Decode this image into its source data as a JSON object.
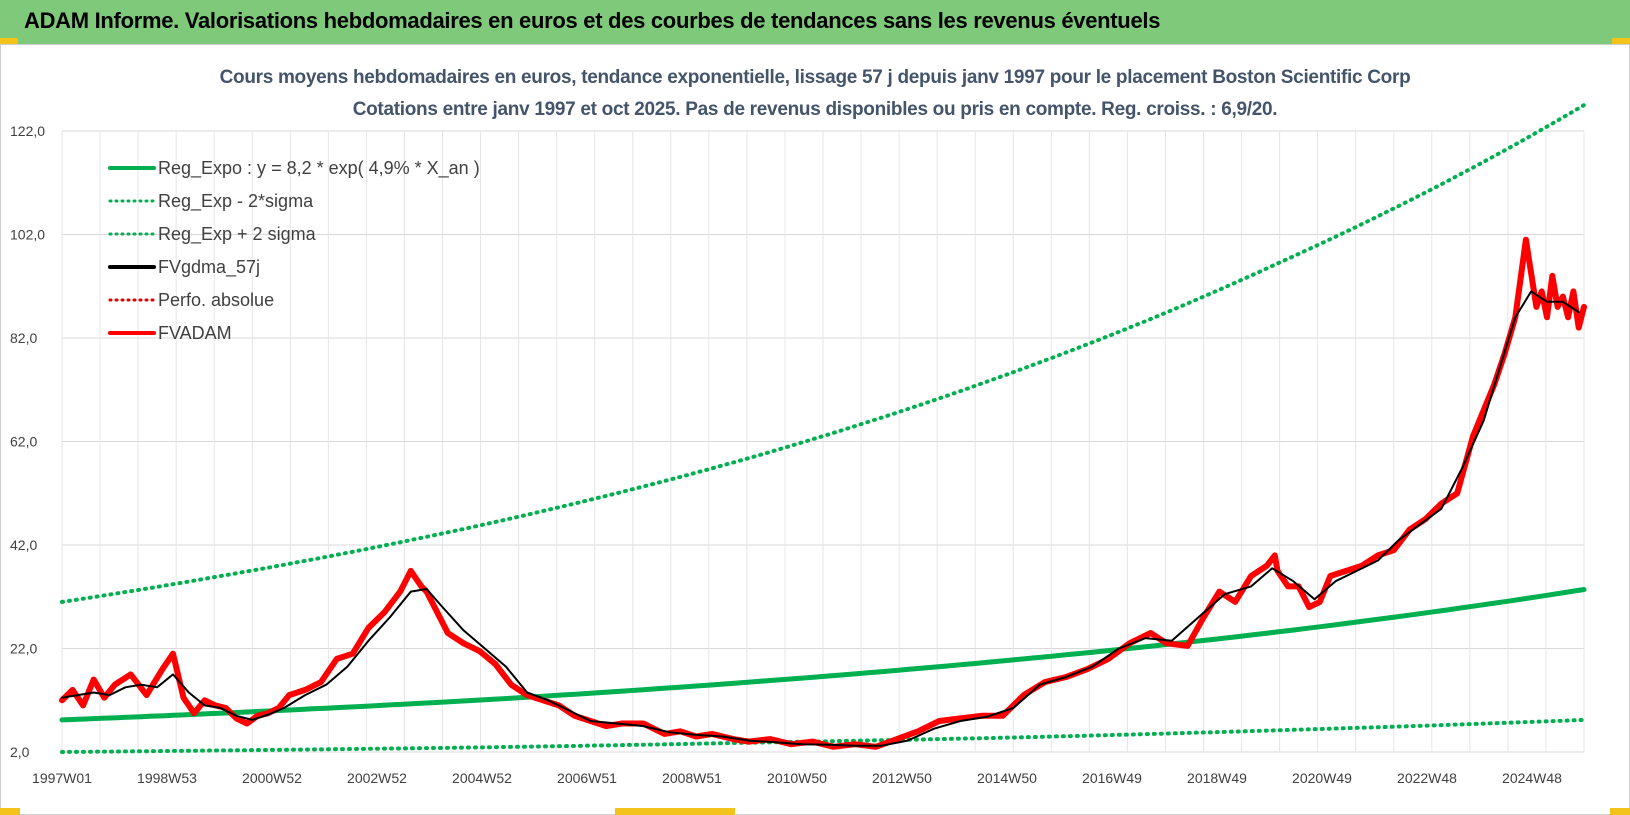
{
  "header": {
    "title": "ADAM Informe. Valorisations hebdomadaires en euros et des courbes de tendances sans les revenus éventuels"
  },
  "chart_data": {
    "type": "line",
    "title": "Cours moyens hebdomadaires en euros, tendance exponentielle, lissage 57 j depuis janv 1997 pour le placement Boston Scientific Corp",
    "subtitle": "Cotations entre janv 1997 et oct 2025. Pas de revenus disponibles ou pris en compte. Reg. croiss. : 6,9/20.",
    "ylim": [
      2,
      122
    ],
    "y_ticks": [
      "2,0",
      "22,0",
      "42,0",
      "62,0",
      "82,0",
      "102,0",
      "122,0"
    ],
    "x_ticks": [
      "1997W01",
      "1998W53",
      "2000W52",
      "2002W52",
      "2004W52",
      "2006W51",
      "2008W51",
      "2010W50",
      "2012W50",
      "2014W50",
      "2016W49",
      "2018W49",
      "2020W49",
      "2022W48",
      "2024W48"
    ],
    "x_range_years": [
      1997.0,
      2025.8
    ],
    "legend": [
      {
        "label": "Reg_Expo : y = 8,2 * exp( 4,9% *  X_an )",
        "color": "#00b050",
        "style": "solid"
      },
      {
        "label": "Reg_Exp - 2*sigma",
        "color": "#00b050",
        "style": "dotted"
      },
      {
        "label": "Reg_Exp + 2 sigma",
        "color": "#00b050",
        "style": "dotted"
      },
      {
        "label": "FVgdma_57j",
        "color": "#000000",
        "style": "solid"
      },
      {
        "label": "Perfo. absolue",
        "color": "#e00000",
        "style": "dotted"
      },
      {
        "label": "FVADAM",
        "color": "#ff0000",
        "style": "solid"
      }
    ],
    "legend_position": "top-left",
    "grid": true,
    "series": [
      {
        "name": "Reg_Expo : y = 8,2 * exp( 4,9% *  X_an )",
        "color": "#00b050",
        "x": [
          1997.0,
          2000.0,
          2005.0,
          2010.0,
          2015.0,
          2020.0,
          2025.8
        ],
        "y": [
          8.2,
          9.5,
          12.1,
          15.5,
          19.8,
          25.2,
          33.4
        ]
      },
      {
        "name": "Reg_Exp - 2*sigma",
        "color": "#00b050",
        "x": [
          1997.0,
          2000.0,
          2005.0,
          2010.0,
          2015.0,
          2020.0,
          2025.8
        ],
        "y": [
          2.0,
          2.3,
          2.9,
          3.8,
          4.8,
          6.2,
          8.2
        ]
      },
      {
        "name": "Reg_Exp + 2 sigma",
        "color": "#00b050",
        "x": [
          1997.0,
          2000.0,
          2005.0,
          2010.0,
          2015.0,
          2020.0,
          2025.8
        ],
        "y": [
          31.0,
          36.0,
          46.0,
          58.8,
          75.4,
          96.4,
          127.0
        ]
      },
      {
        "name": "FVADAM",
        "color": "#ff0000",
        "x": [
          1997.0,
          1997.2,
          1997.4,
          1997.6,
          1997.8,
          1998.0,
          1998.3,
          1998.6,
          1998.9,
          1999.1,
          1999.3,
          1999.5,
          1999.7,
          1999.9,
          2000.1,
          2000.3,
          2000.5,
          2000.7,
          2000.9,
          2001.1,
          2001.3,
          2001.6,
          2001.9,
          2002.2,
          2002.5,
          2002.8,
          2003.1,
          2003.4,
          2003.6,
          2003.8,
          2003.9,
          2004.1,
          2004.3,
          2004.6,
          2004.9,
          2005.2,
          2005.5,
          2005.8,
          2006.1,
          2006.4,
          2006.7,
          2007.0,
          2007.3,
          2007.6,
          2008.0,
          2008.4,
          2008.7,
          2009.0,
          2009.3,
          2009.7,
          2010.0,
          2010.4,
          2010.8,
          2011.2,
          2011.6,
          2012.0,
          2012.4,
          2012.8,
          2013.2,
          2013.6,
          2014.0,
          2014.4,
          2014.8,
          2015.2,
          2015.6,
          2016.0,
          2016.4,
          2016.8,
          2017.2,
          2017.6,
          2017.9,
          2018.3,
          2018.6,
          2018.9,
          2019.2,
          2019.5,
          2019.8,
          2019.95,
          2020.0,
          2020.2,
          2020.4,
          2020.6,
          2020.8,
          2021.0,
          2021.3,
          2021.6,
          2021.9,
          2022.2,
          2022.5,
          2022.8,
          2023.1,
          2023.4,
          2023.7,
          2023.9,
          2024.1,
          2024.3,
          2024.5,
          2024.7,
          2024.9,
          2025.0,
          2025.1,
          2025.2,
          2025.3,
          2025.4,
          2025.5,
          2025.6,
          2025.7,
          2025.8
        ],
        "y": [
          12.0,
          14.0,
          11.0,
          16.0,
          12.5,
          15.0,
          17.0,
          13.0,
          18.0,
          21.0,
          12.5,
          9.5,
          12.0,
          11.0,
          10.5,
          8.5,
          7.5,
          9.0,
          9.5,
          10.5,
          13.0,
          14.0,
          15.5,
          20.0,
          21.0,
          26.0,
          29.0,
          33.0,
          37.0,
          34.0,
          33.0,
          29.0,
          25.0,
          23.0,
          21.5,
          19.0,
          15.0,
          13.0,
          12.0,
          11.0,
          9.0,
          8.0,
          7.0,
          7.5,
          7.5,
          5.5,
          6.0,
          5.0,
          5.5,
          4.5,
          4.0,
          4.5,
          3.5,
          4.0,
          3.0,
          3.5,
          3.0,
          4.5,
          6.0,
          8.0,
          8.5,
          9.0,
          9.0,
          13.0,
          15.5,
          16.5,
          18.0,
          20.0,
          23.0,
          25.0,
          23.0,
          22.5,
          28.0,
          33.0,
          31.0,
          36.0,
          38.0,
          40.0,
          37.0,
          34.0,
          34.0,
          30.0,
          31.0,
          36.0,
          37.0,
          38.0,
          40.0,
          41.0,
          45.0,
          47.0,
          50.0,
          52.0,
          63.0,
          68.0,
          73.0,
          79.0,
          86.0,
          101.0,
          88.0,
          91.0,
          86.0,
          94.0,
          88.0,
          90.0,
          86.0,
          91.0,
          84.0,
          88.0
        ]
      },
      {
        "name": "FVgdma_57j",
        "color": "#000000",
        "x": [
          1997.0,
          1997.3,
          1997.6,
          1997.9,
          1998.2,
          1998.5,
          1998.8,
          1999.1,
          1999.4,
          1999.7,
          2000.0,
          2000.3,
          2000.6,
          2000.9,
          2001.2,
          2001.6,
          2002.0,
          2002.4,
          2002.8,
          2003.2,
          2003.6,
          2003.9,
          2004.2,
          2004.6,
          2005.0,
          2005.4,
          2005.8,
          2006.2,
          2006.6,
          2007.0,
          2007.5,
          2008.0,
          2008.5,
          2009.0,
          2009.5,
          2010.0,
          2010.5,
          2011.0,
          2011.5,
          2012.0,
          2012.5,
          2013.0,
          2013.5,
          2014.0,
          2014.5,
          2015.0,
          2015.5,
          2016.0,
          2016.5,
          2017.0,
          2017.5,
          2018.0,
          2018.5,
          2019.0,
          2019.5,
          2019.9,
          2020.3,
          2020.7,
          2021.1,
          2021.5,
          2021.9,
          2022.3,
          2022.7,
          2023.1,
          2023.5,
          2023.9,
          2024.2,
          2024.5,
          2024.8,
          2025.1,
          2025.4,
          2025.7
        ],
        "y": [
          12.5,
          13.0,
          13.5,
          13.0,
          14.5,
          15.0,
          14.5,
          17.0,
          13.5,
          11.0,
          10.5,
          9.0,
          8.2,
          9.2,
          10.5,
          13.0,
          15.0,
          18.5,
          23.5,
          28.0,
          33.0,
          33.5,
          30.0,
          25.5,
          22.0,
          18.5,
          13.5,
          12.0,
          10.0,
          8.0,
          7.5,
          7.0,
          5.8,
          5.3,
          5.0,
          4.2,
          3.9,
          3.5,
          3.4,
          3.2,
          3.2,
          4.2,
          6.5,
          8.0,
          8.8,
          10.5,
          15.0,
          16.5,
          18.5,
          22.0,
          24.0,
          23.5,
          28.0,
          32.5,
          34.0,
          37.5,
          35.0,
          31.5,
          35.0,
          37.0,
          39.0,
          43.0,
          46.0,
          49.0,
          57.0,
          66.0,
          76.0,
          86.0,
          91.0,
          89.0,
          89.0,
          87.0
        ]
      }
    ]
  }
}
